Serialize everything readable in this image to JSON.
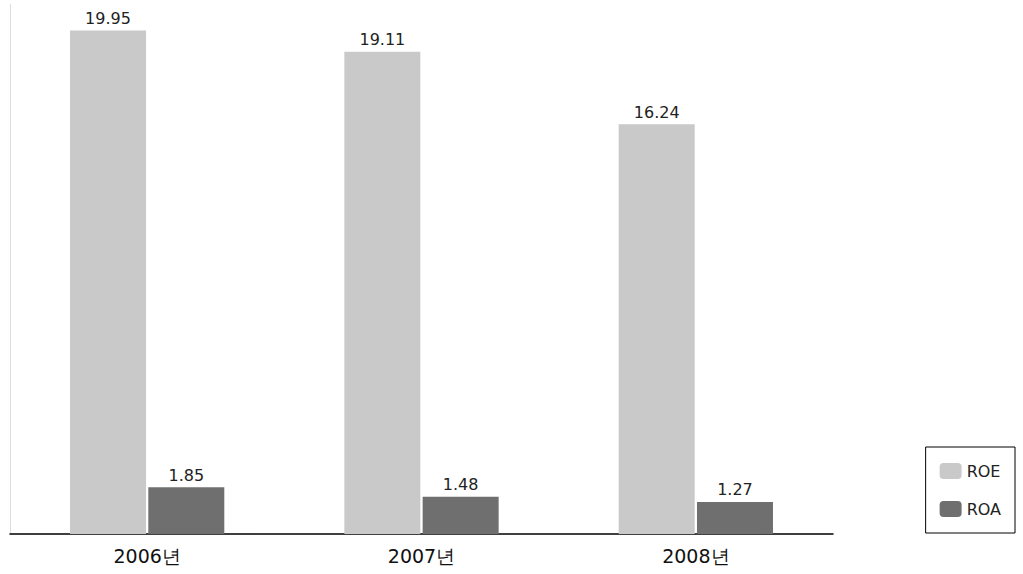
{
  "chart_data": {
    "type": "bar",
    "categories": [
      "2006년",
      "2007년",
      "2008년"
    ],
    "series": [
      {
        "name": "ROE",
        "color": "#c9c9c9",
        "values": [
          19.95,
          19.11,
          16.24
        ]
      },
      {
        "name": "ROA",
        "color": "#6f6f6f",
        "values": [
          1.85,
          1.48,
          1.27
        ]
      }
    ],
    "ylim": [
      0,
      21
    ],
    "grid": false,
    "legend": "bottom-right",
    "data_labels": true,
    "tick_labels": "x"
  }
}
